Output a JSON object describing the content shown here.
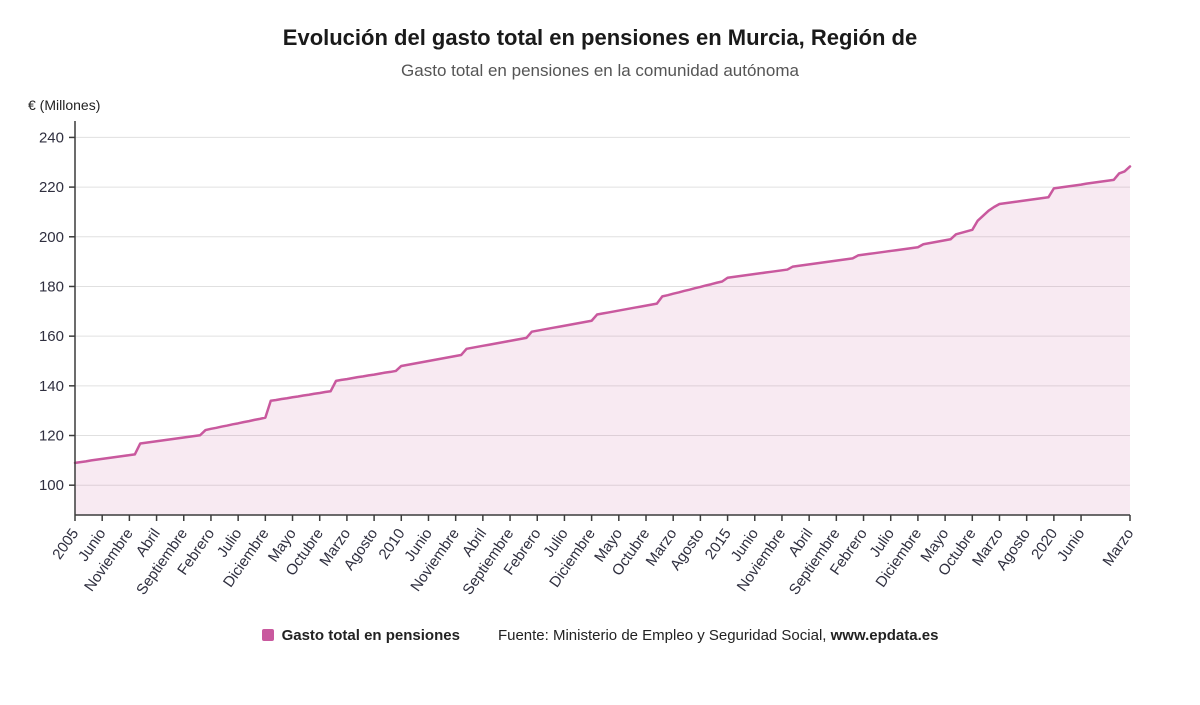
{
  "header": {
    "title": "Evolución del gasto total en pensiones en Murcia, Región de",
    "subtitle": "Gasto total en pensiones en la comunidad autónoma"
  },
  "chart_data": {
    "type": "area",
    "unit_label": "€ (Millones)",
    "title": "Evolución del gasto total en pensiones en Murcia, Región de",
    "subtitle": "Gasto total en pensiones en la comunidad autónoma",
    "ylim": [
      88,
      245
    ],
    "y_ticks": [
      100,
      120,
      140,
      160,
      180,
      200,
      220,
      240
    ],
    "x_tick_labels": [
      "2005",
      "Junio",
      "Noviembre",
      "Abril",
      "Septiembre",
      "Febrero",
      "Julio",
      "Diciembre",
      "Mayo",
      "Octubre",
      "Marzo",
      "Agosto",
      "2010",
      "Junio",
      "Noviembre",
      "Abril",
      "Septiembre",
      "Febrero",
      "Julio",
      "Diciembre",
      "Mayo",
      "Octubre",
      "Marzo",
      "Agosto",
      "2015",
      "Junio",
      "Noviembre",
      "Abril",
      "Septiembre",
      "Febrero",
      "Julio",
      "Diciembre",
      "Mayo",
      "Octubre",
      "Marzo",
      "Agosto",
      "2020",
      "Junio",
      "Marzo"
    ],
    "x_tick_indices": [
      0,
      5,
      10,
      15,
      20,
      25,
      30,
      35,
      40,
      45,
      50,
      55,
      60,
      65,
      70,
      75,
      80,
      85,
      90,
      95,
      100,
      105,
      110,
      115,
      120,
      125,
      130,
      135,
      140,
      145,
      150,
      155,
      160,
      165,
      170,
      175,
      180,
      185,
      194
    ],
    "series": [
      {
        "name": "Gasto total en pensiones",
        "values": [
          109.0,
          109.3,
          109.6,
          110.0,
          110.3,
          110.6,
          110.9,
          111.2,
          111.5,
          111.8,
          112.1,
          112.4,
          116.8,
          117.1,
          117.4,
          117.7,
          118.0,
          118.3,
          118.6,
          118.9,
          119.2,
          119.5,
          119.8,
          120.1,
          122.2,
          122.7,
          123.1,
          123.6,
          124.0,
          124.5,
          124.9,
          125.4,
          125.8,
          126.3,
          126.7,
          127.2,
          134.0,
          134.3,
          134.7,
          135.0,
          135.4,
          135.7,
          136.1,
          136.4,
          136.8,
          137.1,
          137.5,
          137.8,
          142.0,
          142.4,
          142.7,
          143.1,
          143.5,
          143.8,
          144.2,
          144.5,
          144.9,
          145.3,
          145.6,
          146.0,
          148.0,
          148.4,
          148.8,
          149.2,
          149.6,
          150.0,
          150.4,
          150.8,
          151.2,
          151.6,
          152.0,
          152.4,
          154.9,
          155.3,
          155.7,
          156.1,
          156.5,
          156.9,
          157.3,
          157.7,
          158.1,
          158.5,
          158.9,
          159.3,
          161.8,
          162.2,
          162.6,
          163.0,
          163.4,
          163.8,
          164.2,
          164.6,
          165.0,
          165.4,
          165.8,
          166.2,
          168.7,
          169.1,
          169.5,
          169.9,
          170.3,
          170.7,
          171.1,
          171.5,
          171.9,
          172.3,
          172.7,
          173.1,
          176.0,
          176.5,
          177.1,
          177.6,
          178.2,
          178.7,
          179.3,
          179.8,
          180.4,
          180.9,
          181.5,
          182.0,
          183.5,
          183.8,
          184.1,
          184.4,
          184.7,
          185.0,
          185.3,
          185.6,
          185.9,
          186.2,
          186.5,
          186.8,
          188.0,
          188.3,
          188.6,
          188.9,
          189.2,
          189.5,
          189.8,
          190.1,
          190.4,
          190.7,
          191.0,
          191.3,
          192.5,
          192.8,
          193.1,
          193.4,
          193.7,
          194.0,
          194.3,
          194.6,
          194.9,
          195.2,
          195.5,
          195.8,
          197.0,
          197.4,
          197.8,
          198.2,
          198.6,
          199.0,
          201.0,
          201.6,
          202.2,
          202.8,
          206.5,
          208.5,
          210.5,
          212.0,
          213.2,
          213.5,
          213.8,
          214.1,
          214.4,
          214.7,
          215.0,
          215.3,
          215.6,
          215.9,
          219.5,
          219.8,
          220.1,
          220.4,
          220.7,
          221.0,
          221.4,
          221.7,
          222.0,
          222.3,
          222.6,
          222.9,
          225.5,
          226.3,
          228.3
        ]
      }
    ],
    "colors": {
      "line": "#c9599e",
      "fill": "rgba(201,89,158,0.13)",
      "grid": "#e0e0e0",
      "axis": "#3c3c3c",
      "tick_text": "#2f2f3f"
    },
    "legend_position": "bottom",
    "grid": true
  },
  "footer": {
    "legend_label": "Gasto total en pensiones",
    "source_prefix": "Fuente: Ministerio de Empleo y Seguridad Social, ",
    "source_bold": "www.epdata.es"
  }
}
